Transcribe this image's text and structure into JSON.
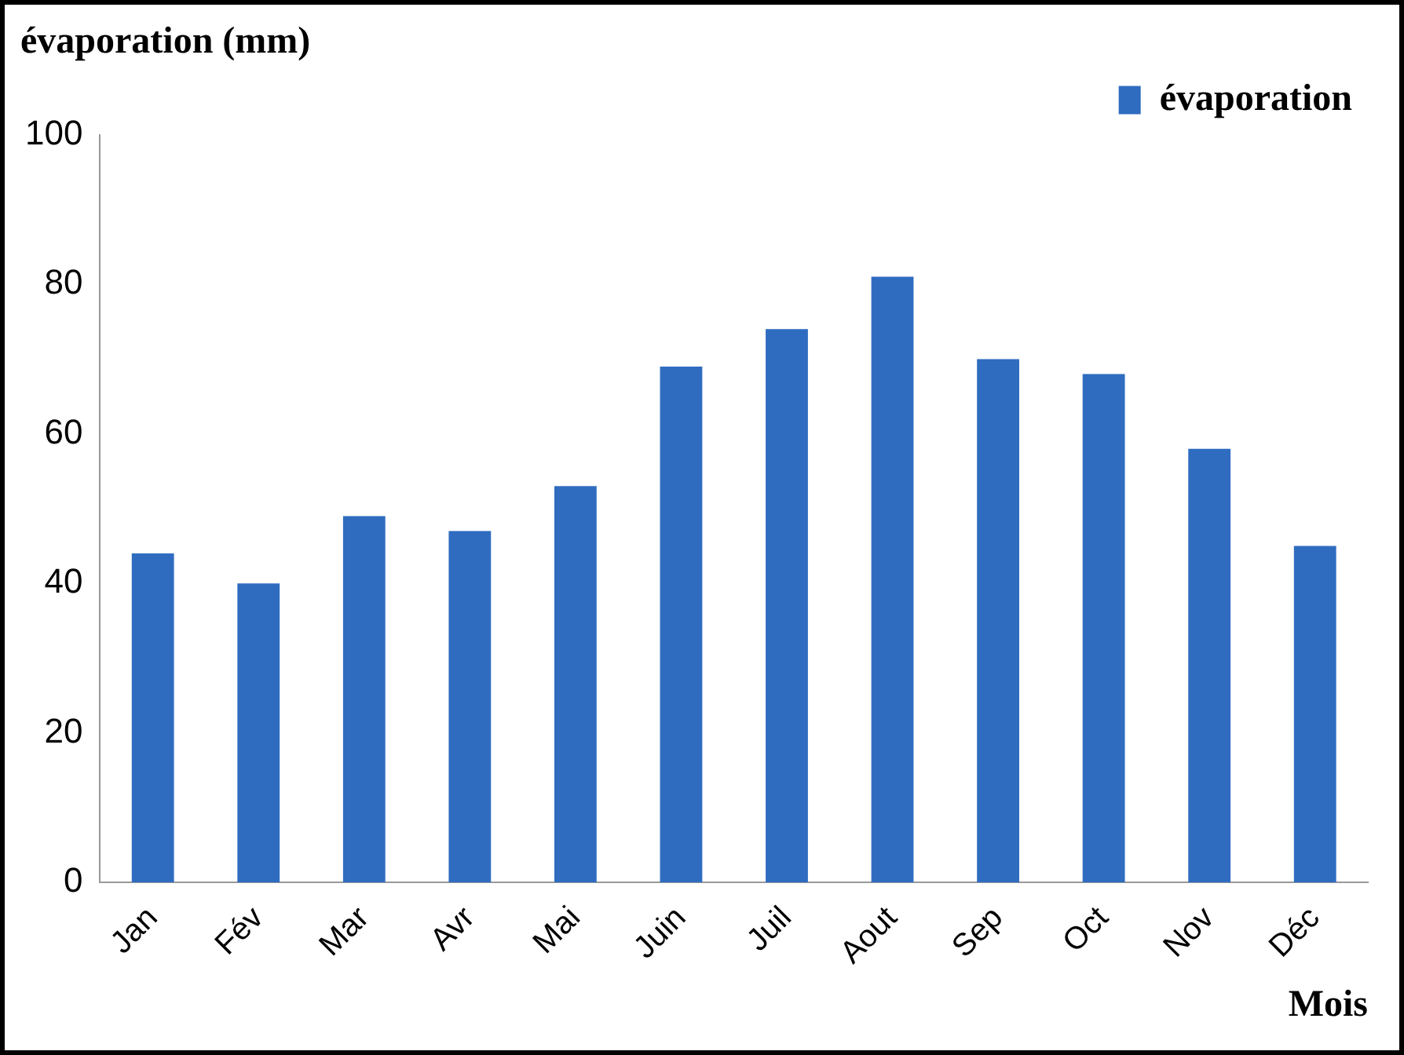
{
  "chart_data": {
    "type": "bar",
    "title": "évaporation (mm)",
    "xlabel": "Mois",
    "categories": [
      "Jan",
      "Fév",
      "Mar",
      "Avr",
      "Mai",
      "Juin",
      "Juil",
      "Aout",
      "Sep",
      "Oct",
      "Nov",
      "Déc"
    ],
    "series": [
      {
        "name": "évaporation",
        "color": "#2f6cc0",
        "values": [
          44,
          40,
          49,
          47,
          53,
          69,
          74,
          81,
          70,
          68,
          58,
          45
        ]
      }
    ],
    "ylim": [
      0,
      100
    ],
    "yticks": [
      0,
      20,
      40,
      60,
      80,
      100
    ],
    "grid": false,
    "legend": "top right"
  }
}
